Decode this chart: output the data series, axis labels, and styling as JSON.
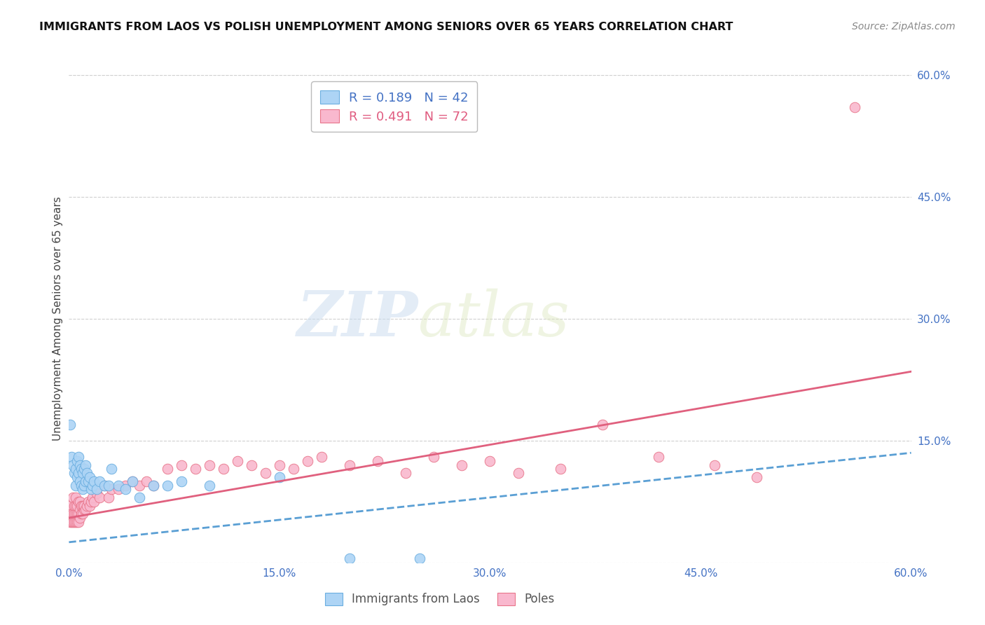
{
  "title": "IMMIGRANTS FROM LAOS VS POLISH UNEMPLOYMENT AMONG SENIORS OVER 65 YEARS CORRELATION CHART",
  "source": "Source: ZipAtlas.com",
  "ylabel": "Unemployment Among Seniors over 65 years",
  "xlim": [
    0.0,
    0.6
  ],
  "ylim": [
    0.0,
    0.6
  ],
  "xtick_labels": [
    "0.0%",
    "15.0%",
    "30.0%",
    "45.0%",
    "60.0%"
  ],
  "xtick_vals": [
    0.0,
    0.15,
    0.3,
    0.45,
    0.6
  ],
  "ytick_labels_right": [
    "60.0%",
    "45.0%",
    "30.0%",
    "15.0%"
  ],
  "ytick_vals_right": [
    0.6,
    0.45,
    0.3,
    0.15
  ],
  "watermark_zip": "ZIP",
  "watermark_atlas": "atlas",
  "legend_blue_label": "Immigrants from Laos",
  "legend_pink_label": "Poles",
  "blue_R": "0.189",
  "blue_N": "42",
  "pink_R": "0.491",
  "pink_N": "72",
  "blue_color": "#add4f5",
  "pink_color": "#f9b8ce",
  "blue_edge": "#6aaee0",
  "pink_edge": "#e8758a",
  "trendline_blue_color": "#5a9fd4",
  "trendline_pink_color": "#e0607e",
  "blue_scatter_x": [
    0.001,
    0.002,
    0.003,
    0.004,
    0.005,
    0.005,
    0.006,
    0.006,
    0.007,
    0.007,
    0.008,
    0.008,
    0.009,
    0.009,
    0.01,
    0.01,
    0.011,
    0.011,
    0.012,
    0.012,
    0.013,
    0.014,
    0.015,
    0.016,
    0.017,
    0.018,
    0.02,
    0.022,
    0.025,
    0.028,
    0.03,
    0.035,
    0.04,
    0.045,
    0.05,
    0.06,
    0.07,
    0.08,
    0.1,
    0.15,
    0.2,
    0.25
  ],
  "blue_scatter_y": [
    0.17,
    0.13,
    0.12,
    0.11,
    0.115,
    0.095,
    0.125,
    0.105,
    0.13,
    0.11,
    0.12,
    0.1,
    0.115,
    0.095,
    0.11,
    0.09,
    0.115,
    0.095,
    0.12,
    0.1,
    0.11,
    0.1,
    0.105,
    0.09,
    0.095,
    0.1,
    0.09,
    0.1,
    0.095,
    0.095,
    0.115,
    0.095,
    0.09,
    0.1,
    0.08,
    0.095,
    0.095,
    0.1,
    0.095,
    0.105,
    0.005,
    0.005
  ],
  "pink_scatter_x": [
    0.001,
    0.001,
    0.002,
    0.002,
    0.003,
    0.003,
    0.003,
    0.004,
    0.004,
    0.004,
    0.005,
    0.005,
    0.005,
    0.005,
    0.006,
    0.006,
    0.006,
    0.007,
    0.007,
    0.007,
    0.008,
    0.008,
    0.008,
    0.009,
    0.009,
    0.01,
    0.01,
    0.011,
    0.011,
    0.012,
    0.013,
    0.014,
    0.015,
    0.016,
    0.017,
    0.018,
    0.02,
    0.022,
    0.025,
    0.028,
    0.03,
    0.035,
    0.04,
    0.045,
    0.05,
    0.055,
    0.06,
    0.07,
    0.08,
    0.09,
    0.1,
    0.11,
    0.12,
    0.13,
    0.14,
    0.15,
    0.16,
    0.17,
    0.18,
    0.2,
    0.22,
    0.24,
    0.26,
    0.28,
    0.3,
    0.32,
    0.35,
    0.38,
    0.42,
    0.46,
    0.49,
    0.56
  ],
  "pink_scatter_y": [
    0.05,
    0.07,
    0.05,
    0.06,
    0.05,
    0.06,
    0.08,
    0.05,
    0.06,
    0.07,
    0.05,
    0.06,
    0.07,
    0.08,
    0.05,
    0.06,
    0.07,
    0.05,
    0.06,
    0.075,
    0.055,
    0.065,
    0.075,
    0.06,
    0.07,
    0.06,
    0.07,
    0.065,
    0.07,
    0.065,
    0.07,
    0.075,
    0.07,
    0.075,
    0.08,
    0.075,
    0.085,
    0.08,
    0.095,
    0.08,
    0.09,
    0.09,
    0.095,
    0.1,
    0.095,
    0.1,
    0.095,
    0.115,
    0.12,
    0.115,
    0.12,
    0.115,
    0.125,
    0.12,
    0.11,
    0.12,
    0.115,
    0.125,
    0.13,
    0.12,
    0.125,
    0.11,
    0.13,
    0.12,
    0.125,
    0.11,
    0.115,
    0.17,
    0.13,
    0.12,
    0.105,
    0.56
  ],
  "blue_trend_x": [
    0.0,
    0.6
  ],
  "blue_trend_y": [
    0.025,
    0.135
  ],
  "pink_trend_x": [
    0.0,
    0.6
  ],
  "pink_trend_y": [
    0.055,
    0.235
  ]
}
